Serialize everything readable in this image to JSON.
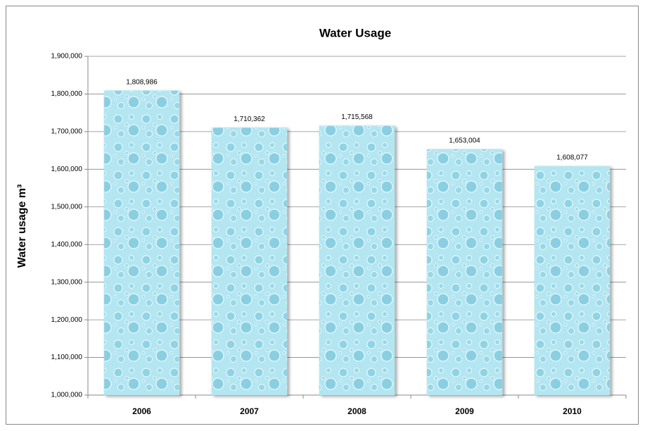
{
  "chart_data": {
    "type": "bar",
    "title": "Water Usage",
    "y_label": "Water usage m³",
    "categories": [
      "2006",
      "2007",
      "2008",
      "2009",
      "2010"
    ],
    "values": [
      1808986,
      1710362,
      1715568,
      1653004,
      1608077
    ],
    "value_labels": [
      "1,808,986",
      "1,710,362",
      "1,715,568",
      "1,653,004",
      "1,608,077"
    ],
    "color": "#aee3ef",
    "ylim": [
      1000000,
      1900000
    ],
    "yticks": [
      {
        "value": 1000000,
        "label": "1,000,000"
      },
      {
        "value": 1100000,
        "label": "1,100,000"
      },
      {
        "value": 1200000,
        "label": "1,200,000"
      },
      {
        "value": 1300000,
        "label": "1,300,000"
      },
      {
        "value": 1400000,
        "label": "1,400,000"
      },
      {
        "value": 1500000,
        "label": "1,500,000"
      },
      {
        "value": 1600000,
        "label": "1,600,000"
      },
      {
        "value": 1700000,
        "label": "1,700,000"
      },
      {
        "value": 1800000,
        "label": "1,800,000"
      },
      {
        "value": 1900000,
        "label": "1,900,000"
      }
    ],
    "grid": true
  }
}
